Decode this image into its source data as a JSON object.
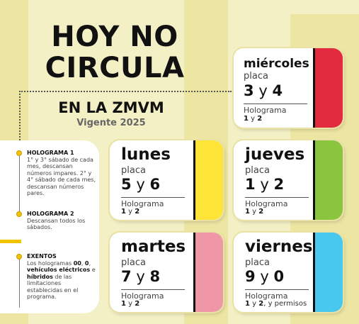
{
  "header": {
    "title_line1": "HOY NO",
    "title_line2": "CIRCULA",
    "subtitle": "EN LA ZMVM",
    "vigente": "Vigente 2025"
  },
  "notes": [
    {
      "heading": "HOLOGRAMA 1",
      "lines": [
        "1° y 3° sábado de cada mes, descansan números impares.",
        "2° y 4° sábado de cada mes, descansan números pares."
      ]
    },
    {
      "heading": "HOLOGRAMA 2",
      "lines": [
        "Descansan todos los sábados."
      ]
    },
    {
      "heading": "EXENTOS",
      "pre": "Los hologramas ",
      "b1": "00",
      "mid1": ", ",
      "b2": "0",
      "mid2": ", ",
      "b3": "vehículos eléctricos",
      "mid3": " e ",
      "b4": "híbridos",
      "post": " de las limitaciones establecidas en el programa."
    }
  ],
  "cards": {
    "miercoles": {
      "day": "miércoles",
      "placa": "placa",
      "n1": "3",
      "y": "y",
      "n2": "4",
      "holo": "Holograma",
      "h1": "1",
      "hy": " y ",
      "h2": "2",
      "extra": "",
      "color": "#e22b3f"
    },
    "lunes": {
      "day": "lunes",
      "placa": "placa",
      "n1": "5",
      "y": "y",
      "n2": "6",
      "holo": "Holograma",
      "h1": "1",
      "hy": " y ",
      "h2": "2",
      "extra": "",
      "color": "#fde437"
    },
    "jueves": {
      "day": "jueves",
      "placa": "placa",
      "n1": "1",
      "y": "y",
      "n2": "2",
      "holo": "Holograma",
      "h1": "1",
      "hy": " y ",
      "h2": "2",
      "extra": "",
      "color": "#8bc53f"
    },
    "martes": {
      "day": "martes",
      "placa": "placa",
      "n1": "7",
      "y": "y",
      "n2": "8",
      "holo": "Holograma",
      "h1": "1",
      "hy": " y ",
      "h2": "2",
      "extra": "",
      "color": "#ef97a6"
    },
    "viernes": {
      "day": "viernes",
      "placa": "placa",
      "n1": "9",
      "y": "y",
      "n2": "0",
      "holo": "Holograma",
      "h1": "1",
      "hy": " y ",
      "h2": "2",
      "extra": ", y permisos",
      "color": "#49c8ee"
    }
  }
}
